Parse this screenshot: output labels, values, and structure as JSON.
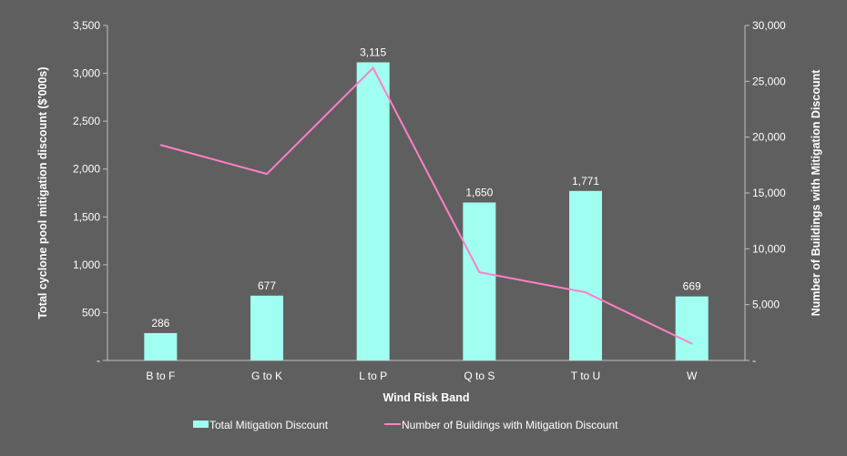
{
  "chart_data": {
    "type": "bar+line",
    "title": "",
    "xlabel": "Wind Risk Band",
    "ylabel": "Total cyclone pool mitigation discount ($'000s)",
    "y2label": "Number of Buildings with Mitigation Discount",
    "categories": [
      "B to F",
      "G to K",
      "L to P",
      "Q to S",
      "T to U",
      "W"
    ],
    "series": [
      {
        "name": "Total Mitigation Discount",
        "type": "bar",
        "axis": "left",
        "values": [
          286,
          677,
          3115,
          1650,
          1771,
          669
        ],
        "labels": [
          "286",
          "677",
          "3,115",
          "1,650",
          "1,771",
          "669"
        ],
        "color": "#a0fff0"
      },
      {
        "name": "Number of Buildings with Mitigation Discount",
        "type": "line",
        "axis": "right",
        "values": [
          19300,
          16700,
          26200,
          7900,
          6100,
          1500
        ],
        "color": "#ff7fc8"
      }
    ],
    "ylim": [
      0,
      3500
    ],
    "y2lim": [
      0,
      30000
    ],
    "yticks": [
      "-",
      "500",
      "1,000",
      "1,500",
      "2,000",
      "2,500",
      "3,000",
      "3,500"
    ],
    "y2ticks": [
      "-",
      "5,000",
      "10,000",
      "15,000",
      "20,000",
      "25,000",
      "30,000"
    ],
    "grid": false,
    "legend": "bottom"
  }
}
